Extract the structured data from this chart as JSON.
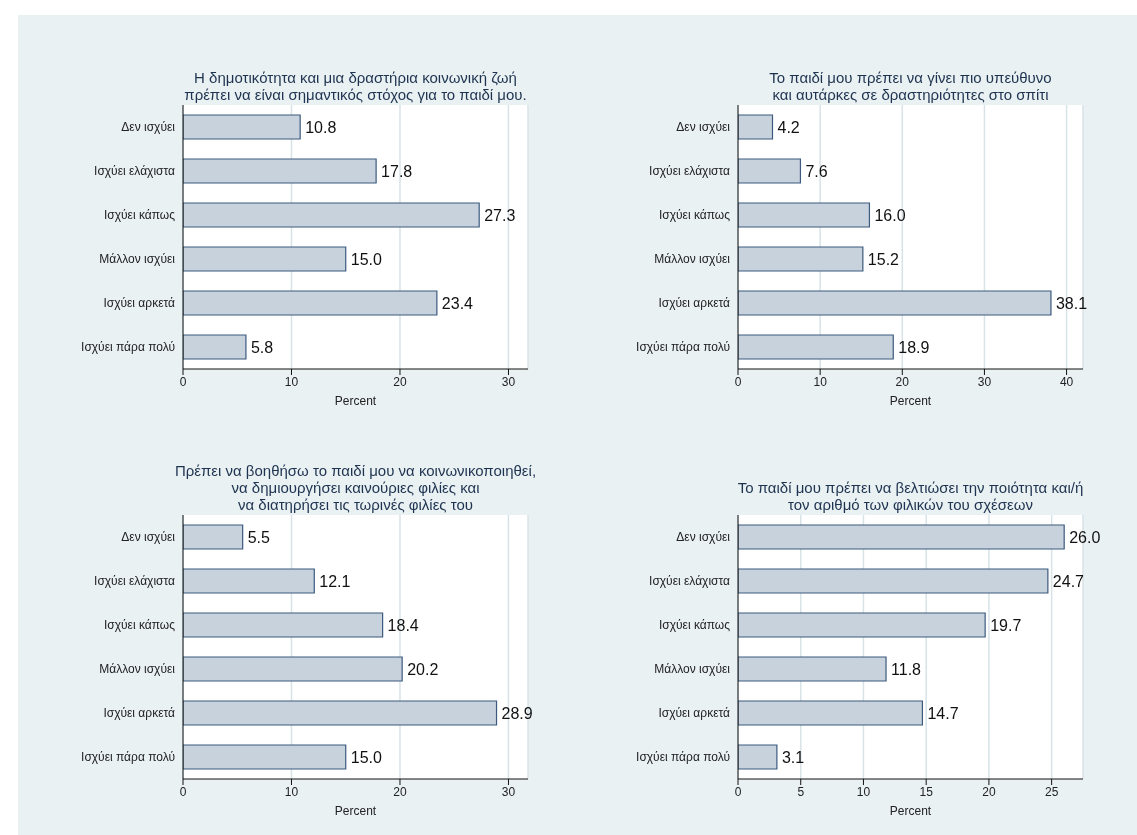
{
  "chart_data": [
    {
      "type": "bar",
      "orientation": "horizontal",
      "title": "Η δημοτικότητα και μια δραστήρια κοινωνική ζωή\nπρέπει να είναι σημαντικός στόχος για το παιδί μου.",
      "xlabel": "Percent",
      "categories": [
        "Δεν ισχύει",
        "Ισχύει ελάχιστα",
        "Ισχύει κάπως",
        "Μάλλον ισχύει",
        "Ισχύει αρκετά",
        "Ισχύει πάρα πολύ"
      ],
      "values": [
        10.8,
        17.8,
        27.3,
        15.0,
        23.4,
        5.8
      ],
      "value_labels": [
        "10.8",
        "17.8",
        "27.3",
        "15.0",
        "23.4",
        "5.8"
      ],
      "color": "#c8d2dd",
      "xlim": [
        0,
        31.8
      ],
      "xticks": [
        0,
        10,
        20,
        30
      ],
      "grid": "x"
    },
    {
      "type": "bar",
      "orientation": "horizontal",
      "title": "Το παιδί μου πρέπει να γίνει πιο υπεύθυνο\nκαι αυτάρκες σε δραστηριότητες στο σπίτι",
      "xlabel": "Percent",
      "categories": [
        "Δεν ισχύει",
        "Ισχύει ελάχιστα",
        "Ισχύει κάπως",
        "Μάλλον ισχύει",
        "Ισχύει αρκετά",
        "Ισχύει πάρα πολύ"
      ],
      "values": [
        4.2,
        7.6,
        16.0,
        15.2,
        38.1,
        18.9
      ],
      "value_labels": [
        "4.2",
        "7.6",
        "16.0",
        "15.2",
        "38.1",
        "18.9"
      ],
      "color": "#c8d2dd",
      "xlim": [
        0,
        42
      ],
      "xticks": [
        0,
        10,
        20,
        30,
        40
      ],
      "grid": "x"
    },
    {
      "type": "bar",
      "orientation": "horizontal",
      "title": "Πρέπει να βοηθήσω το παιδί μου να κοινωνικοποιηθεί,\nνα δημιουργήσει καινούριες φιλίες και\nνα διατηρήσει τις τωρινές φιλίες του",
      "xlabel": "Percent",
      "categories": [
        "Δεν ισχύει",
        "Ισχύει ελάχιστα",
        "Ισχύει κάπως",
        "Μάλλον ισχύει",
        "Ισχύει αρκετά",
        "Ισχύει πάρα πολύ"
      ],
      "values": [
        5.5,
        12.1,
        18.4,
        20.2,
        28.9,
        15.0
      ],
      "value_labels": [
        "5.5",
        "12.1",
        "18.4",
        "20.2",
        "28.9",
        "15.0"
      ],
      "color": "#c8d2dd",
      "xlim": [
        0,
        31.8
      ],
      "xticks": [
        0,
        10,
        20,
        30
      ],
      "grid": "x"
    },
    {
      "type": "bar",
      "orientation": "horizontal",
      "title": "Το παιδί μου πρέπει να βελτιώσει την ποιότητα και/ή\nτον αριθμό των φιλικών του σχέσεων",
      "xlabel": "Percent",
      "categories": [
        "Δεν ισχύει",
        "Ισχύει ελάχιστα",
        "Ισχύει κάπως",
        "Μάλλον ισχύει",
        "Ισχύει αρκετά",
        "Ισχύει πάρα πολύ"
      ],
      "values": [
        26.0,
        24.7,
        19.7,
        11.8,
        14.7,
        3.1
      ],
      "value_labels": [
        "26.0",
        "24.7",
        "19.7",
        "11.8",
        "14.7",
        "3.1"
      ],
      "color": "#c8d2dd",
      "xlim": [
        0,
        27.5
      ],
      "xticks": [
        0,
        5,
        10,
        15,
        20,
        25
      ],
      "grid": "x"
    }
  ]
}
